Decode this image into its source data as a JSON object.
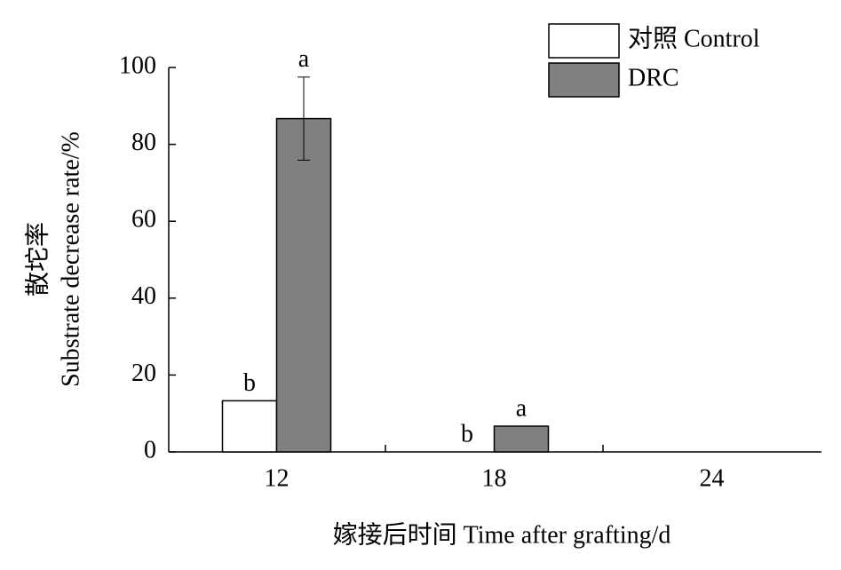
{
  "chart_data": {
    "type": "bar",
    "xlabel": "嫁接后时间 Time after grafting/d",
    "ylabel": [
      "散坨率",
      "Substrate decrease rate/%"
    ],
    "categories": [
      "12",
      "18",
      "24"
    ],
    "series": [
      {
        "name": "对照 Control",
        "color": "#ffffff",
        "values": [
          13.3,
          0,
          0
        ],
        "letters": [
          "b",
          "b",
          null
        ]
      },
      {
        "name": "DRC",
        "color": "#808080",
        "values": [
          86.7,
          6.7,
          0
        ],
        "errors": [
          10.8,
          null,
          null
        ],
        "letters": [
          "a",
          "a",
          null
        ]
      }
    ],
    "ylim": [
      0,
      100
    ],
    "yticks": [
      0,
      20,
      40,
      60,
      80,
      100
    ],
    "legend": "upper right"
  }
}
